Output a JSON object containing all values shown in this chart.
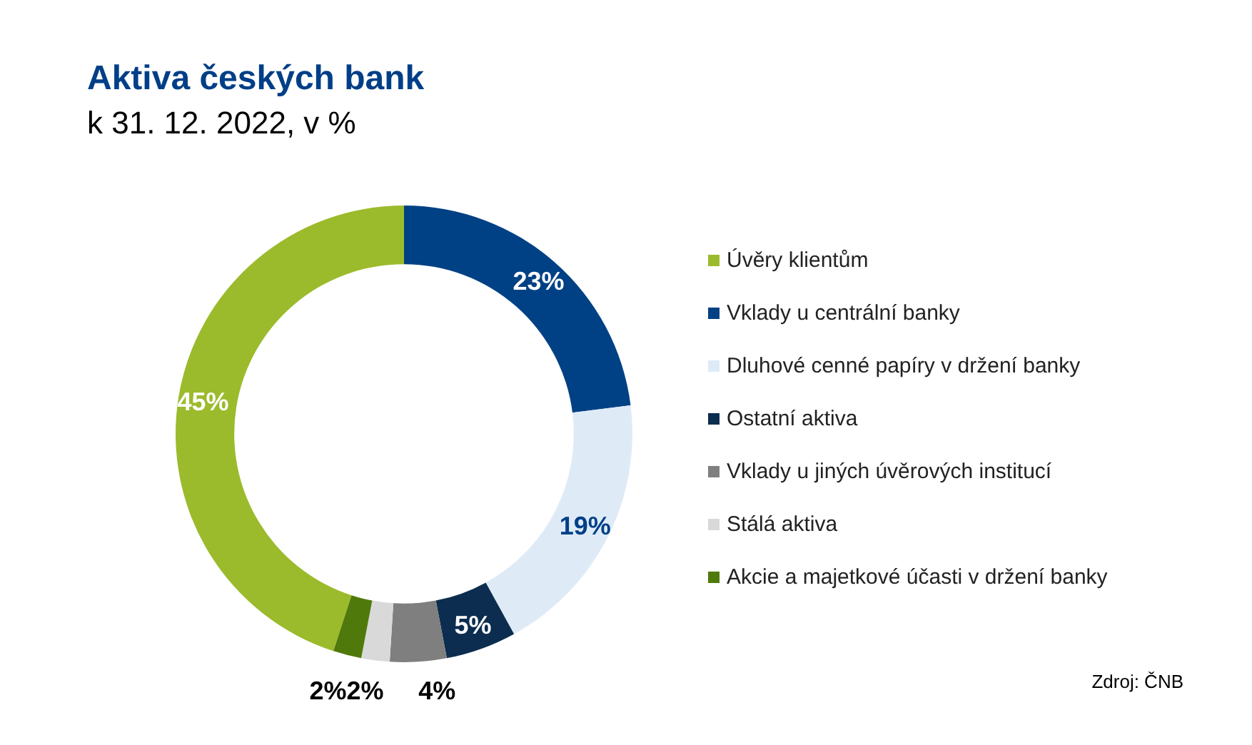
{
  "chart_data": {
    "type": "donut",
    "title": "Aktiva českých bank",
    "subtitle": "k 31. 12. 2022, v %",
    "categories": [
      "Úvěry klientům",
      "Vklady u centrální banky",
      "Dluhové cenné papíry v držení banky",
      "Ostatní aktiva",
      "Vklady u jiných úvěrových institucí",
      "Stálá aktiva",
      "Akcie a majetkové účasti v držení banky"
    ],
    "values": [
      45,
      23,
      19,
      5,
      4,
      2,
      2
    ],
    "colors": [
      "#9bbb2c",
      "#004185",
      "#deebf7",
      "#0c2d4f",
      "#7f7f7f",
      "#d9d9d9",
      "#4f7a0b"
    ],
    "value_labels": [
      "45%",
      "23%",
      "19%",
      "5%",
      "4%",
      "2%",
      "2%"
    ],
    "legend": "right",
    "annotations": [
      "Zdroj: ČNB"
    ]
  }
}
